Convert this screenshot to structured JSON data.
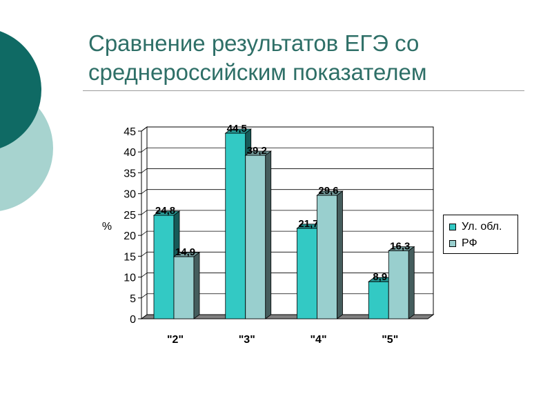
{
  "title": "Сравнение результатов ЕГЭ со среднероссийским показателем",
  "colors": {
    "title": "#2e6f67",
    "deco_dark": "#0f6a64",
    "deco_light": "#a7d3cf"
  },
  "chart_data": {
    "type": "bar",
    "categories": [
      "\"2\"",
      "\"3\"",
      "\"4\"",
      "\"5\""
    ],
    "series": [
      {
        "name": "Ул. обл.",
        "values": [
          24.8,
          44.5,
          21.7,
          8.9
        ],
        "label_text": [
          "24,8",
          "44,5",
          "21,7",
          "8,9"
        ],
        "color": "#33c9c4"
      },
      {
        "name": "РФ",
        "values": [
          14.9,
          39.2,
          29.6,
          16.3
        ],
        "label_text": [
          "14,9",
          "39,2",
          "29,6",
          "16,3"
        ],
        "color": "#99cfce"
      }
    ],
    "ylabel": "%",
    "xlabel": "",
    "ylim": [
      0,
      45
    ],
    "yticks": [
      "0",
      "5",
      "10",
      "15",
      "20",
      "25",
      "30",
      "35",
      "40",
      "45"
    ],
    "grid": true,
    "legend": "right"
  }
}
